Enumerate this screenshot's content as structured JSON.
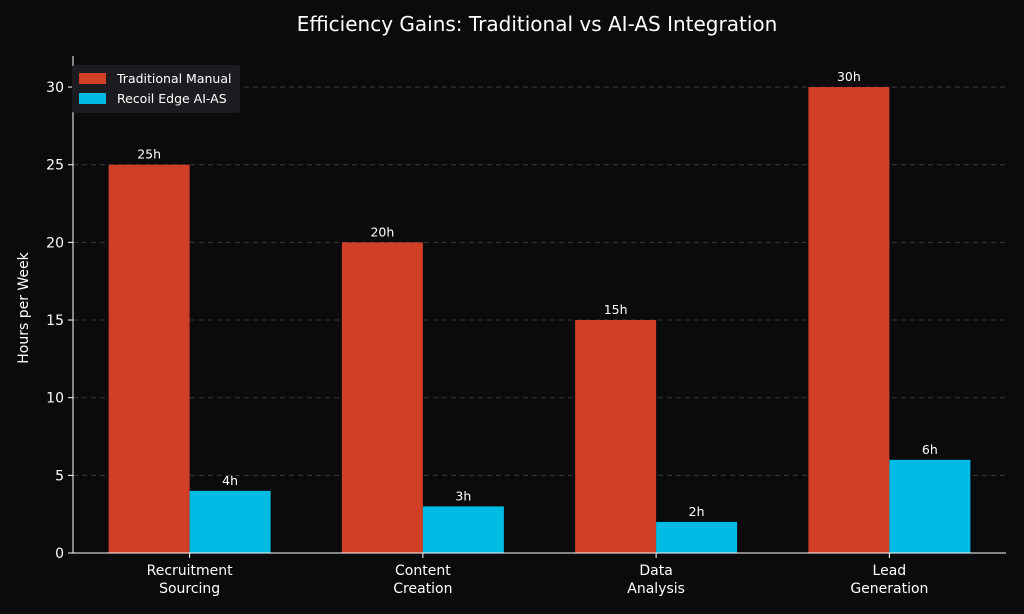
{
  "chart_data": {
    "type": "bar",
    "title": "Efficiency Gains: Traditional vs AI-AS Integration",
    "xlabel": "",
    "ylabel": "Hours per Week",
    "categories": [
      [
        "Recruitment",
        "Sourcing"
      ],
      [
        "Content",
        "Creation"
      ],
      [
        "Data",
        "Analysis"
      ],
      [
        "Lead",
        "Generation"
      ]
    ],
    "series": [
      {
        "name": "Traditional Manual",
        "color": "#d13f26",
        "values": [
          25,
          20,
          15,
          30
        ],
        "labels": [
          "25h",
          "20h",
          "15h",
          "30h"
        ]
      },
      {
        "name": "Recoil Edge AI-AS",
        "color": "#00bce4",
        "values": [
          4,
          3,
          2,
          6
        ],
        "labels": [
          "4h",
          "3h",
          "2h",
          "6h"
        ]
      }
    ],
    "ylim": [
      0,
      32
    ],
    "yticks": [
      0,
      5,
      10,
      15,
      20,
      25,
      30
    ],
    "grid": true,
    "legend_position": "top-left"
  }
}
